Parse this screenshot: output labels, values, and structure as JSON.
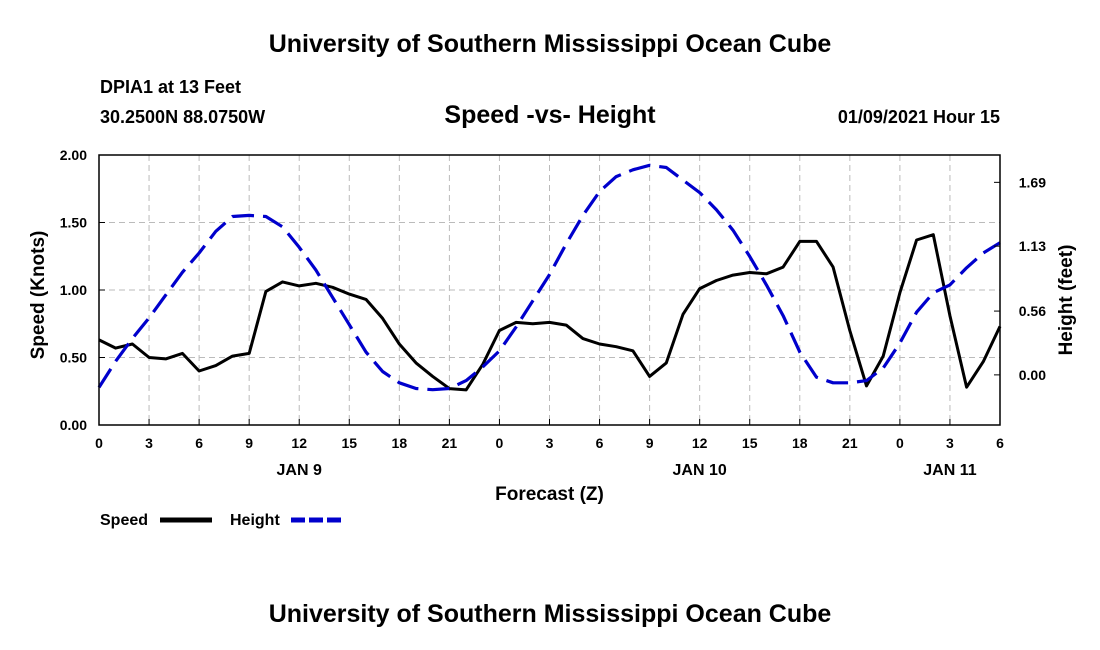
{
  "header": {
    "title": "University of Southern Mississippi Ocean Cube",
    "station": "DPIA1 at 13 Feet",
    "coords": "30.2500N 88.0750W",
    "chart_title": "Speed -vs- Height",
    "timestamp": "01/09/2021 Hour 15"
  },
  "footer": {
    "title": "University of Southern Mississippi Ocean Cube"
  },
  "colors": {
    "speed": "#000000",
    "height": "#0000cc",
    "grid": "#bbbbbb"
  },
  "chart_data": {
    "type": "line",
    "title": "Speed -vs- Height",
    "xlabel": "Forecast (Z)",
    "ylabel": "Speed (Knots)",
    "y2label": "Height (feet)",
    "xlim": [
      0,
      54
    ],
    "ylim": [
      0,
      2.0
    ],
    "y2lim": [
      -0.44,
      1.93
    ],
    "x_ticks": [
      0,
      3,
      6,
      9,
      12,
      15,
      18,
      21,
      24,
      27,
      30,
      33,
      36,
      39,
      42,
      45,
      48,
      51,
      54
    ],
    "x_tick_labels": [
      "0",
      "3",
      "6",
      "9",
      "12",
      "15",
      "18",
      "21",
      "0",
      "3",
      "6",
      "9",
      "12",
      "15",
      "18",
      "21",
      "0",
      "3",
      "6"
    ],
    "date_labels": [
      {
        "x": 12,
        "label": "JAN 9"
      },
      {
        "x": 36,
        "label": "JAN 10"
      },
      {
        "x": 51,
        "label": "JAN 11"
      }
    ],
    "y_ticks": [
      0,
      0.5,
      1.0,
      1.5,
      2.0
    ],
    "y_tick_labels": [
      "0.00",
      "0.50",
      "1.00",
      "1.50",
      "2.00"
    ],
    "y2_ticks": [
      0.0,
      0.56,
      1.13,
      1.69
    ],
    "y2_tick_labels": [
      "0.00",
      "0.56",
      "1.13",
      "1.69"
    ],
    "grid": true,
    "legend": [
      {
        "name": "Speed",
        "style": "solid"
      },
      {
        "name": "Height",
        "style": "dashed"
      }
    ],
    "series": [
      {
        "name": "Speed",
        "axis": "left",
        "style": "solid",
        "x": [
          0,
          1,
          2,
          3,
          4,
          5,
          6,
          7,
          8,
          9,
          10,
          11,
          12,
          13,
          14,
          15,
          16,
          17,
          18,
          19,
          20,
          21,
          22,
          23,
          24,
          25,
          26,
          27,
          28,
          29,
          30,
          31,
          32,
          33,
          34,
          35,
          36,
          37,
          38,
          39,
          40,
          41,
          42,
          43,
          44,
          45,
          46,
          47,
          48,
          49,
          50,
          51,
          52,
          53,
          54
        ],
        "values": [
          0.63,
          0.57,
          0.6,
          0.5,
          0.49,
          0.53,
          0.4,
          0.44,
          0.51,
          0.53,
          0.99,
          1.06,
          1.03,
          1.05,
          1.02,
          0.97,
          0.93,
          0.79,
          0.6,
          0.46,
          0.36,
          0.27,
          0.26,
          0.45,
          0.7,
          0.76,
          0.75,
          0.76,
          0.74,
          0.64,
          0.6,
          0.58,
          0.55,
          0.36,
          0.46,
          0.82,
          1.01,
          1.07,
          1.11,
          1.13,
          1.12,
          1.17,
          1.36,
          1.36,
          1.17,
          0.7,
          0.29,
          0.51,
          0.98,
          1.37,
          1.41,
          0.81,
          0.28,
          0.47,
          0.73
        ]
      },
      {
        "name": "Height",
        "axis": "right",
        "style": "dashed",
        "x": [
          0,
          1,
          2,
          3,
          4,
          5,
          6,
          7,
          8,
          9,
          10,
          11,
          12,
          13,
          14,
          15,
          16,
          17,
          18,
          19,
          20,
          21,
          22,
          23,
          24,
          25,
          26,
          27,
          28,
          29,
          30,
          31,
          32,
          33,
          34,
          35,
          36,
          37,
          38,
          39,
          40,
          41,
          42,
          43,
          44,
          45,
          46,
          47,
          48,
          49,
          50,
          51,
          52,
          53,
          54
        ],
        "values": [
          -0.11,
          0.12,
          0.32,
          0.5,
          0.7,
          0.9,
          1.07,
          1.26,
          1.39,
          1.4,
          1.39,
          1.3,
          1.12,
          0.92,
          0.68,
          0.44,
          0.2,
          0.03,
          -0.07,
          -0.12,
          -0.13,
          -0.12,
          -0.05,
          0.07,
          0.21,
          0.42,
          0.65,
          0.88,
          1.15,
          1.4,
          1.61,
          1.74,
          1.8,
          1.84,
          1.82,
          1.71,
          1.6,
          1.45,
          1.27,
          1.04,
          0.79,
          0.52,
          0.2,
          -0.02,
          -0.07,
          -0.07,
          -0.05,
          0.06,
          0.28,
          0.55,
          0.72,
          0.79,
          0.94,
          1.07,
          1.16
        ]
      }
    ]
  }
}
